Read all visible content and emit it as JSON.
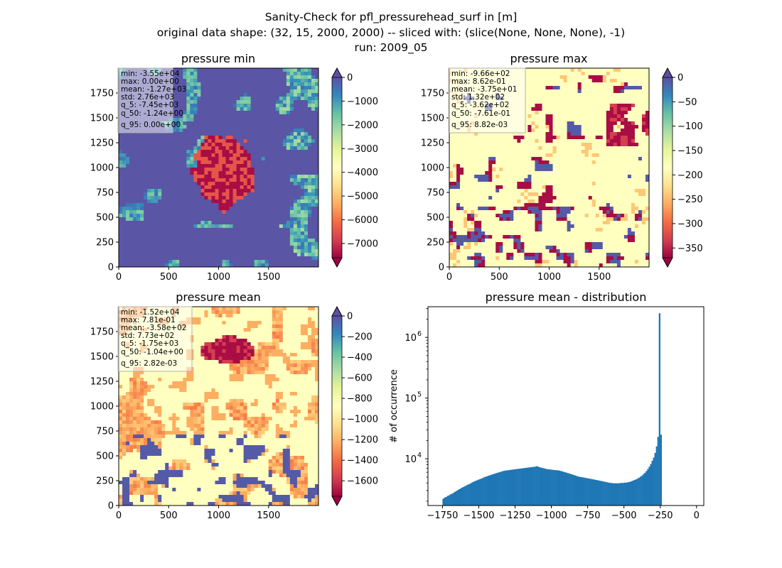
{
  "figure": {
    "suptitle": [
      "Sanity-Check for pfl_pressurehead_surf in [m]",
      "original data shape: (32, 15, 2000, 2000) -- sliced with: (slice(None, None, None), -1)",
      "run: 2009_05"
    ]
  },
  "colors": {
    "spectral": [
      "#9e0142",
      "#d53e4f",
      "#f46d43",
      "#fdae61",
      "#fee08b",
      "#ffffbf",
      "#e6f598",
      "#abdda4",
      "#66c2a5",
      "#3288bd",
      "#5e4fa2"
    ],
    "hist_bar": "#1f77b4"
  },
  "chart_data": [
    {
      "id": "pmin",
      "type": "heatmap",
      "title": "pressure min",
      "colormap": "Spectral",
      "xticks": [
        "0",
        "500",
        "1000",
        "1500"
      ],
      "xtick_values": [
        0,
        500,
        1000,
        1500
      ],
      "yticks": [
        "0",
        "250",
        "500",
        "750",
        "1000",
        "1250",
        "1500",
        "1750"
      ],
      "ytick_values": [
        0,
        250,
        500,
        750,
        1000,
        1250,
        1500,
        1750
      ],
      "xlim": [
        0,
        2000
      ],
      "ylim": [
        0,
        2000
      ],
      "colorbar": {
        "vmin": -7600,
        "vmax": 0,
        "extend": "both",
        "ticks": [
          0,
          -1000,
          -2000,
          -3000,
          -4000,
          -5000,
          -6000,
          -7000
        ],
        "ticklabels": [
          "0",
          "−1000",
          "−2000",
          "−3000",
          "−4000",
          "−5000",
          "−6000",
          "−7000"
        ]
      },
      "stats": [
        "min: -3.55e+04",
        "max: 0.00e+00",
        "mean: -1.27e+03",
        "std: 2.76e+03",
        "q_5: -7.45e+03",
        "q_50: -1.24e+00",
        "q_95: 0.00e+00"
      ]
    },
    {
      "id": "pmax",
      "type": "heatmap",
      "title": "pressure max",
      "colormap": "Spectral",
      "xticks": [
        "0",
        "500",
        "1000",
        "1500"
      ],
      "xtick_values": [
        0,
        500,
        1000,
        1500
      ],
      "yticks": [
        "0",
        "250",
        "500",
        "750",
        "1000",
        "1250",
        "1500",
        "1750"
      ],
      "ytick_values": [
        0,
        250,
        500,
        750,
        1000,
        1250,
        1500,
        1750
      ],
      "xlim": [
        0,
        2000
      ],
      "ylim": [
        0,
        2000
      ],
      "colorbar": {
        "vmin": -370,
        "vmax": 0,
        "extend": "both",
        "ticks": [
          0,
          -50,
          -100,
          -150,
          -200,
          -250,
          -300,
          -350
        ],
        "ticklabels": [
          "0",
          "−50",
          "−100",
          "−150",
          "−200",
          "−250",
          "−300",
          "−350"
        ]
      },
      "stats": [
        "min: -9.66e+02",
        "max: 8.62e-01",
        "mean: -3.75e+01",
        "std: 1.32e+02",
        "q_5: -3.62e+02",
        "q_50: -7.61e-01",
        "q_95: 8.82e-03"
      ]
    },
    {
      "id": "pmean",
      "type": "heatmap",
      "title": "pressure mean",
      "colormap": "Spectral",
      "xticks": [
        "0",
        "500",
        "1000",
        "1500"
      ],
      "xtick_values": [
        0,
        500,
        1000,
        1500
      ],
      "yticks": [
        "0",
        "250",
        "500",
        "750",
        "1000",
        "1250",
        "1500",
        "1750"
      ],
      "ytick_values": [
        0,
        250,
        500,
        750,
        1000,
        1250,
        1500,
        1750
      ],
      "xlim": [
        0,
        2000
      ],
      "ylim": [
        0,
        2000
      ],
      "colorbar": {
        "vmin": -1750,
        "vmax": 0,
        "extend": "both",
        "ticks": [
          0,
          -200,
          -400,
          -600,
          -800,
          -1000,
          -1200,
          -1400,
          -1600
        ],
        "ticklabels": [
          "0",
          "−200",
          "−400",
          "−600",
          "−800",
          "−1000",
          "−1200",
          "−1400",
          "−1600"
        ]
      },
      "stats": [
        "min: -1.52e+04",
        "max: 7.81e-01",
        "mean: -3.58e+02",
        "std: 7.73e+02",
        "q_5: -1.75e+03",
        "q_50: -1.04e+00",
        "q_95: 2.82e-03"
      ]
    },
    {
      "id": "hist",
      "type": "bar",
      "title": "pressure mean - distribution",
      "ylabel": "# of occurrence",
      "xlabel": "",
      "yscale": "log",
      "xlim": [
        -1850,
        50
      ],
      "ylim": [
        1700,
        3200000
      ],
      "xticks": [
        "−1750",
        "−1500",
        "−1250",
        "−1000",
        "−750",
        "−500",
        "−250",
        "0"
      ],
      "xtick_values": [
        -1750,
        -1500,
        -1250,
        -1000,
        -750,
        -500,
        -250,
        0
      ],
      "yticks": [
        "10",
        "10",
        "10"
      ],
      "ytick_exp": [
        "4",
        "5",
        "6"
      ],
      "ytick_values": [
        10000,
        100000,
        1000000
      ],
      "bin_start": -1750,
      "bin_width": 10,
      "counts": [
        2200,
        2300,
        2350,
        2450,
        2500,
        2600,
        2650,
        2750,
        2850,
        2950,
        3050,
        3150,
        3250,
        3350,
        3450,
        3550,
        3650,
        3750,
        3850,
        3950,
        4100,
        4200,
        4300,
        4400,
        4500,
        4600,
        4700,
        4800,
        4950,
        5050,
        5150,
        5250,
        5350,
        5450,
        5550,
        5650,
        5750,
        5850,
        5950,
        6050,
        6150,
        6250,
        6350,
        6400,
        6450,
        6500,
        6550,
        6600,
        6650,
        6700,
        6750,
        6800,
        6850,
        6900,
        6950,
        7000,
        7050,
        7100,
        7150,
        7200,
        7250,
        7300,
        7350,
        7400,
        7500,
        7550,
        7300,
        7200,
        7100,
        7000,
        6900,
        6800,
        6700,
        6700,
        6650,
        6600,
        6550,
        6500,
        6500,
        6450,
        6400,
        6300,
        6200,
        6100,
        6000,
        5900,
        5800,
        5700,
        5600,
        5500,
        5400,
        5300,
        5200,
        5100,
        5050,
        5000,
        4950,
        4900,
        4850,
        4800,
        4750,
        4700,
        4650,
        4600,
        4550,
        4500,
        4450,
        4400,
        4350,
        4300,
        4250,
        4200,
        4150,
        4100,
        4050,
        4000,
        4000,
        3950,
        3950,
        3950,
        3950,
        3950,
        4000,
        4000,
        4000,
        4050,
        4050,
        4100,
        4150,
        4200,
        4300,
        4400,
        4500,
        4600,
        4750,
        4900,
        5100,
        5300,
        5600,
        5900,
        6300,
        6800,
        7400,
        8200,
        9300,
        10500,
        12500,
        16000,
        23000,
        2500000,
        25000
      ]
    }
  ]
}
